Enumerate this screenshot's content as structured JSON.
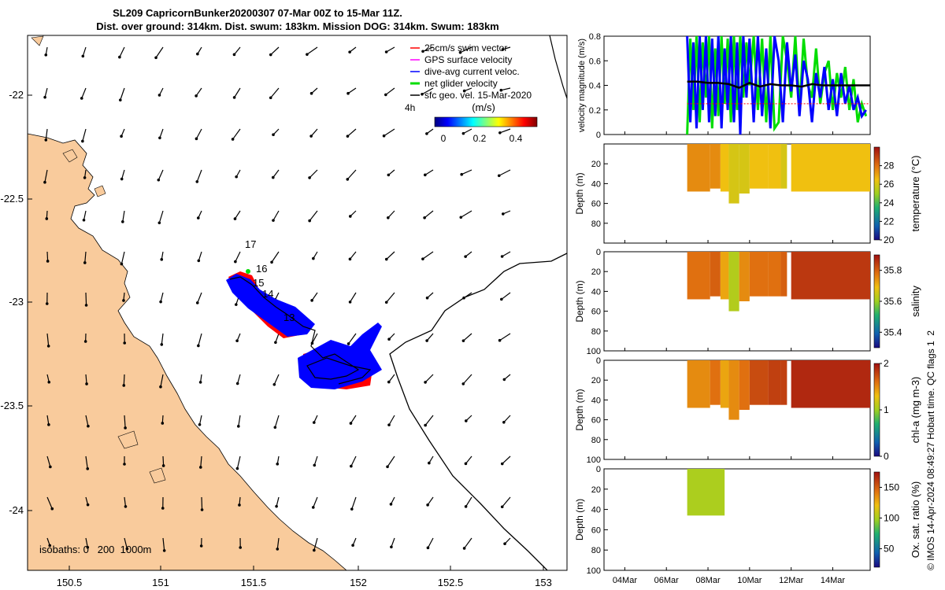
{
  "title": {
    "line1": "SL209 CapricornBunker20200307 07-Mar 00Z to 15-Mar 11Z.",
    "line2": "Dist. over ground: 314km. Dist. swum: 183km. Mission DOG: 314km. Swum: 183km"
  },
  "colors": {
    "land": "#f9cb9c",
    "sea": "#ffffff",
    "swim_vector": "#ff0000",
    "gps_velocity": "#ff00ff",
    "dive_avg": "#0000ff",
    "net_glider": "#00dd00",
    "sfc_geo": "#000000"
  },
  "map": {
    "legend": [
      {
        "label": "25cm/s swim vector",
        "color": "#ff0000"
      },
      {
        "label": "GPS surface velocity",
        "color": "#ff00ff"
      },
      {
        "label": "dive-avg current veloc.",
        "color": "#0000ff"
      },
      {
        "label": "net glider velocity",
        "color": "#00dd00"
      },
      {
        "label": "sfc geo. vel. 15-Mar-2020",
        "color": "#000000"
      }
    ],
    "legend_4h": "4h",
    "colorbar_label": "(m/s)",
    "colorbar_ticks": [
      "0",
      "0.2",
      "0.4"
    ],
    "isobaths_label": "isobaths: 0   200  1000m",
    "day_labels": [
      "17",
      "16",
      "15",
      "14",
      "13"
    ],
    "xticks": [
      "150.5",
      "151",
      "151.5",
      "152",
      "152.5",
      "153"
    ],
    "yticks": [
      "-22",
      "-22.5",
      "-23",
      "-23.5",
      "-24"
    ]
  },
  "credit": "© IMOS 14-Apr-2024 08:49:27 Hobart time. QC flags 1  2",
  "chart_data": [
    {
      "type": "line",
      "title": "velocity magnitude",
      "ylabel": "velocity magnitude (m/s)",
      "ylim": [
        0,
        0.8
      ],
      "yticks": [
        "0",
        "0.2",
        "0.4",
        "0.6",
        "0.8"
      ],
      "xlim_days": [
        3,
        15.8
      ],
      "series": [
        {
          "name": "net glider velocity",
          "color": "#00dd00",
          "x": [
            7.0,
            7.15,
            7.3,
            7.45,
            7.6,
            7.75,
            7.9,
            8.05,
            8.2,
            8.35,
            8.5,
            8.65,
            8.8,
            8.95,
            9.1,
            9.25,
            9.4,
            9.55,
            9.7,
            9.85,
            10.0,
            10.2,
            10.4,
            10.6,
            10.8,
            11.0,
            11.2,
            11.4,
            11.6,
            11.8,
            12.0,
            12.2,
            12.4,
            12.6,
            12.8,
            13.0,
            13.2,
            13.4,
            13.6,
            13.8,
            14.0,
            14.2,
            14.4,
            14.6,
            14.8,
            15.0,
            15.2,
            15.4,
            15.6
          ],
          "y": [
            0.0,
            0.78,
            0.2,
            0.8,
            0.1,
            0.75,
            0.3,
            0.8,
            0.05,
            0.7,
            0.15,
            0.8,
            0.25,
            0.78,
            0.1,
            0.8,
            0.2,
            0.8,
            0.3,
            0.75,
            0.4,
            0.8,
            0.2,
            0.78,
            0.1,
            0.8,
            0.05,
            0.1,
            0.8,
            0.6,
            0.3,
            0.8,
            0.2,
            0.78,
            0.4,
            0.3,
            0.7,
            0.25,
            0.5,
            0.6,
            0.2,
            0.5,
            0.3,
            0.55,
            0.2,
            0.45,
            0.1,
            0.25,
            0.15
          ]
        },
        {
          "name": "dive-avg current veloc.",
          "color": "#0000ff",
          "x": [
            7.0,
            7.15,
            7.3,
            7.45,
            7.6,
            7.75,
            7.9,
            8.05,
            8.2,
            8.35,
            8.5,
            8.65,
            8.8,
            8.95,
            9.1,
            9.25,
            9.4,
            9.55,
            9.7,
            9.85,
            10.0,
            10.2,
            10.4,
            10.6,
            10.8,
            11.0,
            11.2,
            11.4,
            11.6,
            11.8,
            12.0,
            12.2,
            12.4,
            12.6,
            12.8,
            13.0,
            13.2,
            13.4,
            13.6,
            13.8,
            14.0,
            14.2,
            14.4,
            14.6,
            14.8,
            15.0,
            15.2,
            15.4,
            15.6
          ],
          "y": [
            0.8,
            0.1,
            0.75,
            0.05,
            0.8,
            0.2,
            0.8,
            0.1,
            0.78,
            0.15,
            0.8,
            0.05,
            0.7,
            0.2,
            0.8,
            0.1,
            0.75,
            0.0,
            0.8,
            0.3,
            0.78,
            0.1,
            0.8,
            0.15,
            0.7,
            0.05,
            0.8,
            0.6,
            0.1,
            0.75,
            0.35,
            0.65,
            0.15,
            0.6,
            0.45,
            0.1,
            0.5,
            0.3,
            0.55,
            0.2,
            0.45,
            0.15,
            0.5,
            0.25,
            0.4,
            0.2,
            0.3,
            0.15,
            0.2
          ]
        },
        {
          "name": "sfc geo. vel.",
          "color": "#000000",
          "x": [
            7.0,
            7.5,
            8.0,
            8.5,
            9.0,
            9.5,
            10.0,
            10.5,
            11.0,
            11.5,
            12.0,
            12.5,
            13.0,
            13.5,
            14.0,
            14.5,
            15.0,
            15.5,
            15.8
          ],
          "y": [
            0.43,
            0.43,
            0.42,
            0.42,
            0.41,
            0.38,
            0.42,
            0.39,
            0.41,
            0.4,
            0.4,
            0.39,
            0.41,
            0.4,
            0.4,
            0.4,
            0.4,
            0.4,
            0.4
          ]
        },
        {
          "name": "25cm/s swim vector",
          "color": "#ff0000",
          "x": [
            7.0,
            15.8
          ],
          "y": [
            0.25,
            0.25
          ]
        }
      ]
    },
    {
      "type": "heatmap",
      "title": "temperature",
      "cbar_label": "temperature (°C)",
      "clim": [
        20,
        30
      ],
      "cbar_ticks": [
        "20",
        "22",
        "24",
        "26",
        "28"
      ],
      "ylabel": "Depth (m)",
      "yticks": [
        "20",
        "40",
        "60",
        "80"
      ],
      "ylim": [
        0,
        100
      ],
      "segments": [
        [
          7.0,
          8.1,
          48
        ],
        [
          8.1,
          8.6,
          45
        ],
        [
          8.6,
          9.0,
          48
        ],
        [
          9.0,
          9.5,
          60
        ],
        [
          9.5,
          10.0,
          50
        ],
        [
          10.0,
          10.9,
          45
        ],
        [
          10.9,
          11.5,
          45
        ],
        [
          11.5,
          11.8,
          45
        ],
        [
          12.0,
          15.8,
          48
        ]
      ],
      "values": [
        27.5,
        27.5,
        26.5,
        26.0,
        26.0,
        26.5,
        26.5,
        26.0,
        26.5
      ]
    },
    {
      "type": "heatmap",
      "title": "salinity",
      "cbar_label": "salinity",
      "clim": [
        35.3,
        35.9
      ],
      "cbar_ticks": [
        "35.4",
        "35.6",
        "35.8"
      ],
      "ylabel": "Depth (m)",
      "yticks": [
        "0",
        "20",
        "40",
        "60",
        "80",
        "100"
      ],
      "ylim": [
        0,
        100
      ],
      "segments": [
        [
          7.0,
          8.1,
          48
        ],
        [
          8.1,
          8.6,
          45
        ],
        [
          8.6,
          9.0,
          48
        ],
        [
          9.0,
          9.5,
          60
        ],
        [
          9.5,
          10.0,
          50
        ],
        [
          10.0,
          10.9,
          45
        ],
        [
          10.9,
          11.5,
          45
        ],
        [
          11.5,
          11.8,
          45
        ],
        [
          12.0,
          15.8,
          48
        ]
      ],
      "values": [
        35.78,
        35.8,
        35.72,
        35.62,
        35.75,
        35.78,
        35.78,
        35.8,
        35.85
      ]
    },
    {
      "type": "heatmap",
      "title": "chl-a",
      "cbar_label": "chl-a (mg m-3)",
      "clim": [
        0,
        2
      ],
      "cbar_ticks": [
        "0",
        "1",
        "2"
      ],
      "ylabel": "Depth (m)",
      "yticks": [
        "0",
        "20",
        "40",
        "60",
        "80",
        "100"
      ],
      "ylim": [
        0,
        100
      ],
      "segments": [
        [
          7.0,
          8.1,
          48
        ],
        [
          8.1,
          8.6,
          45
        ],
        [
          8.6,
          9.0,
          48
        ],
        [
          9.0,
          9.5,
          60
        ],
        [
          9.5,
          10.0,
          50
        ],
        [
          10.0,
          10.9,
          45
        ],
        [
          10.9,
          11.5,
          45
        ],
        [
          11.5,
          11.8,
          45
        ],
        [
          12.0,
          15.8,
          48
        ]
      ],
      "values": [
        1.5,
        1.6,
        1.4,
        1.5,
        1.6,
        1.75,
        1.8,
        1.8,
        1.9
      ]
    },
    {
      "type": "heatmap",
      "title": "oxygen saturation",
      "cbar_label": "Ox. sat. ratio (%)",
      "clim": [
        20,
        175
      ],
      "cbar_ticks": [
        "50",
        "100",
        "150"
      ],
      "ylabel": "Depth (m)",
      "yticks": [
        "0",
        "20",
        "40",
        "60",
        "80",
        "100"
      ],
      "ylim": [
        0,
        100
      ],
      "segments": [
        [
          7.0,
          8.8,
          46
        ]
      ],
      "values": [
        101
      ]
    }
  ],
  "xaxis_dates": [
    "04Mar",
    "06Mar",
    "08Mar",
    "10Mar",
    "12Mar",
    "14Mar"
  ]
}
